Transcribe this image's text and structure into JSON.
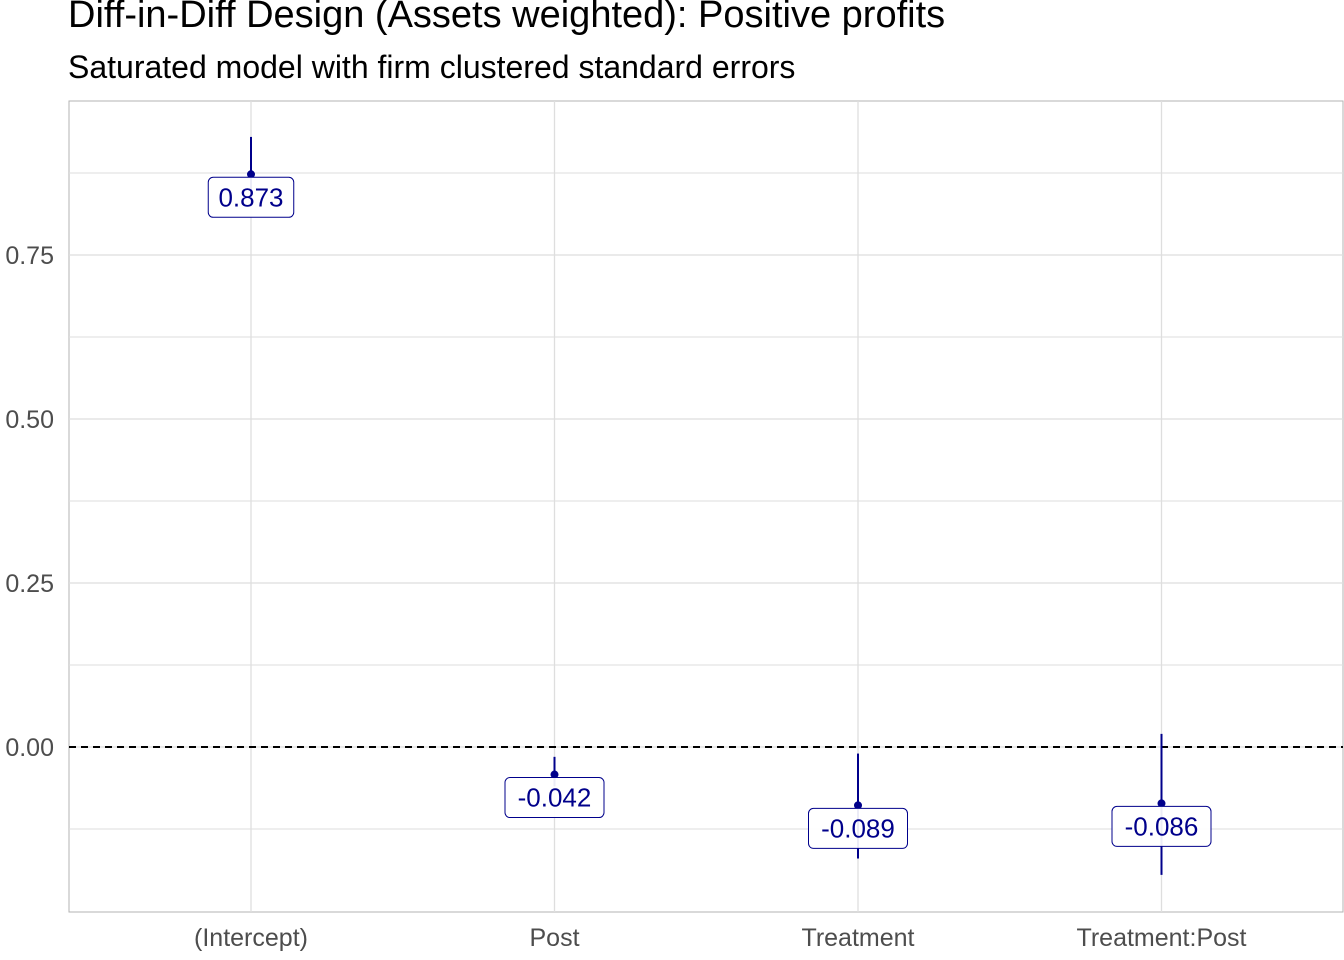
{
  "title": "Diff-in-Diff Design (Assets weighted): Positive profits",
  "subtitle": "Saturated model with firm clustered standard errors",
  "colors": {
    "point": "#00008b",
    "grid": "#dedede",
    "axis_text": "#4d4d4d",
    "reference_line": "#000000",
    "panel_border": "#b3b3b3"
  },
  "chart_data": {
    "type": "errorbar",
    "categories": [
      "(Intercept)",
      "Post",
      "Treatment",
      "Treatment:Post"
    ],
    "estimates": [
      0.873,
      -0.042,
      -0.089,
      -0.086
    ],
    "labels": [
      "0.873",
      "-0.042",
      "-0.089",
      "-0.086"
    ],
    "ci_low": [
      0.83,
      -0.06,
      -0.17,
      -0.195
    ],
    "ci_high": [
      0.93,
      -0.015,
      -0.01,
      0.02
    ],
    "ylim": [
      -0.25,
      0.98
    ],
    "yticks": [
      0.0,
      0.25,
      0.5,
      0.75
    ],
    "ytick_labels": [
      "0.00",
      "0.25",
      "0.50",
      "0.75"
    ],
    "reference_line": 0,
    "reference_line_style": "dashed",
    "grid": true,
    "xlabel": "",
    "ylabel": ""
  }
}
